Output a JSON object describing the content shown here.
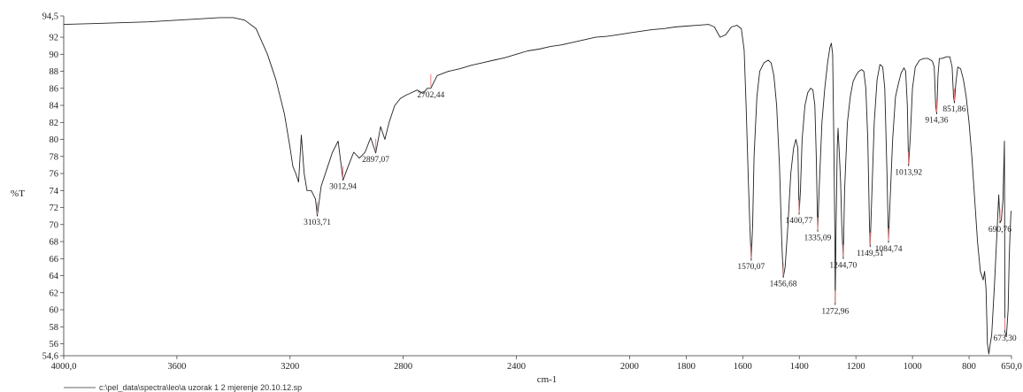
{
  "chart_data": {
    "type": "line",
    "title": "",
    "xlabel": "cm-1",
    "ylabel": "%T",
    "xlim": [
      4000.0,
      650.0
    ],
    "ylim": [
      54.6,
      94.5
    ],
    "x_tick_labels": [
      "4000,0",
      "3600",
      "3200",
      "2800",
      "2400",
      "2000",
      "1800",
      "1600",
      "1400",
      "1200",
      "1000",
      "800",
      "650,0"
    ],
    "x_tick_values": [
      4000,
      3600,
      3200,
      2800,
      2400,
      2000,
      1800,
      1600,
      1400,
      1200,
      1000,
      800,
      650
    ],
    "y_tick_labels": [
      "94,5",
      "92",
      "90",
      "88",
      "86",
      "84",
      "82",
      "80",
      "78",
      "76",
      "74",
      "72",
      "70",
      "68",
      "66",
      "64",
      "62",
      "60",
      "58",
      "56",
      "54,6"
    ],
    "y_tick_values": [
      94.5,
      92,
      90,
      88,
      86,
      84,
      82,
      80,
      78,
      76,
      74,
      72,
      70,
      68,
      66,
      64,
      62,
      60,
      58,
      56,
      54.6
    ],
    "grid": false,
    "legend": {
      "label": "c:\\pel_data\\spectra\\leo\\a uzorak 1 2 mjerenje 20.10.12.sp",
      "placement": "bottom-left"
    },
    "peaks": [
      {
        "x": 3103.71,
        "y": 71.0,
        "label": "3103,71"
      },
      {
        "x": 3012.94,
        "y": 75.2,
        "label": "3012,94"
      },
      {
        "x": 2897.07,
        "y": 78.4,
        "label": "2897,07"
      },
      {
        "x": 2702.44,
        "y": 86.0,
        "label": "2702,44"
      },
      {
        "x": 1570.07,
        "y": 65.8,
        "label": "1570,07"
      },
      {
        "x": 1456.68,
        "y": 63.8,
        "label": "1456,68"
      },
      {
        "x": 1400.77,
        "y": 71.2,
        "label": "1400,77"
      },
      {
        "x": 1335.09,
        "y": 69.2,
        "label": "1335,09"
      },
      {
        "x": 1272.96,
        "y": 60.6,
        "label": "1272,96"
      },
      {
        "x": 1244.7,
        "y": 66.0,
        "label": "1244,70"
      },
      {
        "x": 1149.51,
        "y": 67.4,
        "label": "1149,51"
      },
      {
        "x": 1084.74,
        "y": 67.9,
        "label": "1084,74"
      },
      {
        "x": 1013.92,
        "y": 76.9,
        "label": "1013,92"
      },
      {
        "x": 914.36,
        "y": 83.0,
        "label": "914,36"
      },
      {
        "x": 851.86,
        "y": 84.3,
        "label": "851,86"
      },
      {
        "x": 690.76,
        "y": 70.2,
        "label": "690,76"
      },
      {
        "x": 673.3,
        "y": 57.4,
        "label": "673,30"
      }
    ],
    "series": [
      {
        "values": [
          [
            4000,
            93.5
          ],
          [
            3900,
            93.6
          ],
          [
            3800,
            93.7
          ],
          [
            3700,
            93.8
          ],
          [
            3600,
            94.0
          ],
          [
            3500,
            94.2
          ],
          [
            3450,
            94.3
          ],
          [
            3400,
            94.3
          ],
          [
            3360,
            94.0
          ],
          [
            3320,
            93.0
          ],
          [
            3280,
            90.0
          ],
          [
            3250,
            87.0
          ],
          [
            3220,
            83.0
          ],
          [
            3200,
            79.0
          ],
          [
            3190,
            76.8
          ],
          [
            3180,
            76.0
          ],
          [
            3170,
            75.0
          ],
          [
            3160,
            80.5
          ],
          [
            3150,
            76.0
          ],
          [
            3140,
            74.0
          ],
          [
            3125,
            74.0
          ],
          [
            3110,
            73.0
          ],
          [
            3103.71,
            71.0
          ],
          [
            3090,
            74.5
          ],
          [
            3070,
            76.5
          ],
          [
            3050,
            78.5
          ],
          [
            3030,
            79.8
          ],
          [
            3012.94,
            75.2
          ],
          [
            2995,
            76.8
          ],
          [
            2975,
            78.5
          ],
          [
            2955,
            77.8
          ],
          [
            2935,
            78.5
          ],
          [
            2915,
            80.2
          ],
          [
            2897.07,
            78.4
          ],
          [
            2880,
            81.5
          ],
          [
            2865,
            80.0
          ],
          [
            2850,
            82.0
          ],
          [
            2830,
            84.0
          ],
          [
            2810,
            84.8
          ],
          [
            2790,
            85.2
          ],
          [
            2770,
            85.5
          ],
          [
            2750,
            85.8
          ],
          [
            2730,
            85.4
          ],
          [
            2715,
            86.0
          ],
          [
            2702.44,
            86.0
          ],
          [
            2680,
            87.5
          ],
          [
            2640,
            88.0
          ],
          [
            2600,
            88.3
          ],
          [
            2560,
            88.7
          ],
          [
            2520,
            89.0
          ],
          [
            2480,
            89.3
          ],
          [
            2440,
            89.6
          ],
          [
            2400,
            90.0
          ],
          [
            2360,
            90.4
          ],
          [
            2320,
            90.6
          ],
          [
            2280,
            90.9
          ],
          [
            2240,
            91.1
          ],
          [
            2200,
            91.4
          ],
          [
            2160,
            91.7
          ],
          [
            2120,
            92.0
          ],
          [
            2080,
            92.1
          ],
          [
            2040,
            92.3
          ],
          [
            2000,
            92.5
          ],
          [
            1960,
            92.7
          ],
          [
            1920,
            92.9
          ],
          [
            1880,
            93.0
          ],
          [
            1840,
            93.2
          ],
          [
            1800,
            93.3
          ],
          [
            1760,
            93.4
          ],
          [
            1720,
            93.5
          ],
          [
            1700,
            93.2
          ],
          [
            1680,
            92.0
          ],
          [
            1660,
            92.3
          ],
          [
            1640,
            93.2
          ],
          [
            1620,
            93.4
          ],
          [
            1605,
            93.0
          ],
          [
            1595,
            90.5
          ],
          [
            1588,
            84.0
          ],
          [
            1580,
            75.0
          ],
          [
            1575,
            70.0
          ],
          [
            1570.07,
            65.8
          ],
          [
            1565,
            70.0
          ],
          [
            1560,
            78.0
          ],
          [
            1550,
            85.0
          ],
          [
            1540,
            88.0
          ],
          [
            1525,
            89.0
          ],
          [
            1510,
            89.3
          ],
          [
            1500,
            89.0
          ],
          [
            1490,
            87.5
          ],
          [
            1480,
            84.0
          ],
          [
            1470,
            77.0
          ],
          [
            1462,
            68.0
          ],
          [
            1456.68,
            63.8
          ],
          [
            1450,
            65.0
          ],
          [
            1440,
            70.0
          ],
          [
            1430,
            76.0
          ],
          [
            1420,
            79.0
          ],
          [
            1412,
            80.0
          ],
          [
            1405,
            79.0
          ],
          [
            1400.77,
            71.2
          ],
          [
            1396,
            74.0
          ],
          [
            1390,
            80.0
          ],
          [
            1380,
            84.0
          ],
          [
            1370,
            85.5
          ],
          [
            1360,
            86.0
          ],
          [
            1352,
            85.8
          ],
          [
            1345,
            84.0
          ],
          [
            1340,
            78.0
          ],
          [
            1335.09,
            69.2
          ],
          [
            1330,
            74.0
          ],
          [
            1320,
            82.0
          ],
          [
            1310,
            86.0
          ],
          [
            1300,
            89.0
          ],
          [
            1292,
            90.8
          ],
          [
            1287,
            91.3
          ],
          [
            1282,
            90.0
          ],
          [
            1278,
            80.0
          ],
          [
            1274,
            68.0
          ],
          [
            1272.96,
            60.6
          ],
          [
            1270,
            70.0
          ],
          [
            1266,
            79.0
          ],
          [
            1263,
            81.3
          ],
          [
            1258,
            78.0
          ],
          [
            1254,
            75.0
          ],
          [
            1250,
            70.0
          ],
          [
            1244.7,
            66.0
          ],
          [
            1240,
            74.0
          ],
          [
            1230,
            82.0
          ],
          [
            1220,
            85.0
          ],
          [
            1210,
            86.8
          ],
          [
            1200,
            87.5
          ],
          [
            1190,
            88.0
          ],
          [
            1180,
            88.2
          ],
          [
            1172,
            88.0
          ],
          [
            1165,
            86.0
          ],
          [
            1158,
            80.0
          ],
          [
            1152,
            70.0
          ],
          [
            1149.51,
            67.4
          ],
          [
            1145,
            72.0
          ],
          [
            1135,
            82.0
          ],
          [
            1125,
            87.0
          ],
          [
            1115,
            88.8
          ],
          [
            1105,
            88.5
          ],
          [
            1098,
            86.0
          ],
          [
            1090,
            76.0
          ],
          [
            1084.74,
            67.9
          ],
          [
            1080,
            72.0
          ],
          [
            1070,
            80.0
          ],
          [
            1060,
            85.0
          ],
          [
            1050,
            86.5
          ],
          [
            1040,
            87.8
          ],
          [
            1030,
            88.4
          ],
          [
            1024,
            88.0
          ],
          [
            1018,
            84.0
          ],
          [
            1013.92,
            76.9
          ],
          [
            1008,
            80.0
          ],
          [
            1000,
            86.0
          ],
          [
            990,
            88.5
          ],
          [
            975,
            89.3
          ],
          [
            960,
            89.5
          ],
          [
            945,
            89.5
          ],
          [
            930,
            89.2
          ],
          [
            923,
            88.5
          ],
          [
            918,
            84.0
          ],
          [
            914.36,
            83.0
          ],
          [
            910,
            87.5
          ],
          [
            905,
            89.5
          ],
          [
            895,
            89.5
          ],
          [
            880,
            89.7
          ],
          [
            868,
            89.7
          ],
          [
            860,
            88.5
          ],
          [
            855,
            85.0
          ],
          [
            851.86,
            84.3
          ],
          [
            847,
            86.5
          ],
          [
            840,
            88.5
          ],
          [
            830,
            88.3
          ],
          [
            820,
            87.0
          ],
          [
            810,
            85.0
          ],
          [
            800,
            82.0
          ],
          [
            790,
            78.0
          ],
          [
            780,
            73.0
          ],
          [
            770,
            68.0
          ],
          [
            760,
            64.5
          ],
          [
            750,
            63.5
          ],
          [
            745,
            64.5
          ],
          [
            740,
            62.5
          ],
          [
            735,
            56.0
          ],
          [
            730,
            54.8
          ],
          [
            725,
            56.0
          ],
          [
            720,
            57.0
          ],
          [
            710,
            63.0
          ],
          [
            700,
            70.0
          ],
          [
            695,
            73.5
          ],
          [
            690.76,
            70.2
          ],
          [
            686,
            70.5
          ],
          [
            680,
            73.0
          ],
          [
            675,
            79.8
          ],
          [
            673.3,
            57.4
          ],
          [
            668,
            56.8
          ],
          [
            662,
            60.0
          ],
          [
            658,
            66.0
          ],
          [
            655,
            69.0
          ],
          [
            652,
            71.5
          ],
          [
            650,
            71.6
          ]
        ]
      }
    ]
  }
}
